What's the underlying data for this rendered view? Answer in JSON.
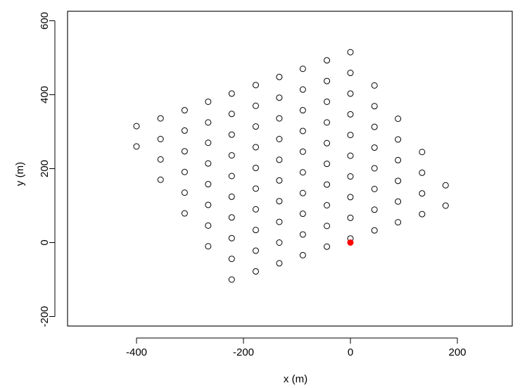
{
  "chart_data": {
    "type": "scatter",
    "xlabel": "x (m)",
    "ylabel": "y (m)",
    "xlim": [
      -520,
      320
    ],
    "ylim": [
      -230,
      625
    ],
    "xticks": [
      -400,
      -200,
      0,
      200
    ],
    "yticks": [
      -200,
      0,
      200,
      400,
      600
    ],
    "grid": false,
    "series": [
      {
        "marker": "open-circle",
        "color": "#000000",
        "points": [
          [
            -400,
            315
          ],
          [
            -400,
            260
          ],
          [
            -355,
            336
          ],
          [
            -355,
            280
          ],
          [
            -355,
            225
          ],
          [
            -355,
            170
          ],
          [
            -310,
            358
          ],
          [
            -310,
            303
          ],
          [
            -310,
            247
          ],
          [
            -310,
            191
          ],
          [
            -310,
            135
          ],
          [
            -310,
            79
          ],
          [
            -266,
            381
          ],
          [
            -266,
            325
          ],
          [
            -266,
            270
          ],
          [
            -266,
            214
          ],
          [
            -266,
            158
          ],
          [
            -266,
            102
          ],
          [
            -266,
            46
          ],
          [
            -266,
            -10
          ],
          [
            -222,
            403
          ],
          [
            -222,
            348
          ],
          [
            -222,
            292
          ],
          [
            -222,
            236
          ],
          [
            -222,
            180
          ],
          [
            -222,
            124
          ],
          [
            -222,
            68
          ],
          [
            -222,
            12
          ],
          [
            -222,
            -44
          ],
          [
            -222,
            -100
          ],
          [
            -177,
            426
          ],
          [
            -177,
            370
          ],
          [
            -177,
            314
          ],
          [
            -177,
            258
          ],
          [
            -177,
            202
          ],
          [
            -177,
            146
          ],
          [
            -177,
            90
          ],
          [
            -177,
            34
          ],
          [
            -177,
            -22
          ],
          [
            -177,
            -78
          ],
          [
            -133,
            448
          ],
          [
            -133,
            392
          ],
          [
            -133,
            336
          ],
          [
            -133,
            280
          ],
          [
            -133,
            224
          ],
          [
            -133,
            168
          ],
          [
            -133,
            112
          ],
          [
            -133,
            56
          ],
          [
            -133,
            0
          ],
          [
            -133,
            -56
          ],
          [
            -89,
            470
          ],
          [
            -89,
            414
          ],
          [
            -89,
            358
          ],
          [
            -89,
            302
          ],
          [
            -89,
            246
          ],
          [
            -89,
            190
          ],
          [
            -89,
            134
          ],
          [
            -89,
            78
          ],
          [
            -89,
            22
          ],
          [
            -89,
            -34
          ],
          [
            -44,
            493
          ],
          [
            -44,
            437
          ],
          [
            -44,
            381
          ],
          [
            -44,
            325
          ],
          [
            -44,
            269
          ],
          [
            -44,
            213
          ],
          [
            -44,
            157
          ],
          [
            -44,
            101
          ],
          [
            -44,
            45
          ],
          [
            -44,
            -11
          ],
          [
            0,
            515
          ],
          [
            0,
            459
          ],
          [
            0,
            403
          ],
          [
            0,
            347
          ],
          [
            0,
            291
          ],
          [
            0,
            235
          ],
          [
            0,
            179
          ],
          [
            0,
            123
          ],
          [
            0,
            67
          ],
          [
            0,
            11
          ],
          [
            45,
            425
          ],
          [
            45,
            369
          ],
          [
            45,
            313
          ],
          [
            45,
            257
          ],
          [
            45,
            201
          ],
          [
            45,
            145
          ],
          [
            45,
            89
          ],
          [
            45,
            33
          ],
          [
            89,
            335
          ],
          [
            89,
            279
          ],
          [
            89,
            223
          ],
          [
            89,
            167
          ],
          [
            89,
            111
          ],
          [
            89,
            55
          ],
          [
            134,
            245
          ],
          [
            134,
            189
          ],
          [
            134,
            133
          ],
          [
            134,
            77
          ],
          [
            178,
            155
          ],
          [
            178,
            100
          ]
        ]
      },
      {
        "marker": "filled-circle",
        "color": "#ff0000",
        "points": [
          [
            0,
            0
          ]
        ]
      }
    ]
  }
}
